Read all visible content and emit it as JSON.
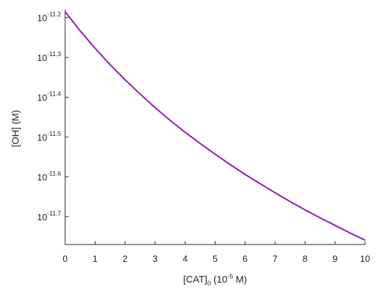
{
  "chart_data": {
    "type": "line",
    "title": "",
    "xlabel": "[CAT]0 (10-5 M)",
    "xlabel_parts": {
      "main": "[CAT]",
      "sub": "0",
      "pre_sup": " (10",
      "sup": "-5",
      "post_sup": " M)"
    },
    "ylabel": "[OH] (M)",
    "xlim": [
      0,
      10
    ],
    "ylim": [
      -11.77,
      -11.18
    ],
    "x_ticks": [
      0,
      1,
      2,
      3,
      4,
      5,
      6,
      7,
      8,
      9,
      10
    ],
    "y_ticks": [
      {
        "value": -11.2,
        "base": "10",
        "exponent": "-11.2"
      },
      {
        "value": -11.3,
        "base": "10",
        "exponent": "-11.3"
      },
      {
        "value": -11.4,
        "base": "10",
        "exponent": "-11.4"
      },
      {
        "value": -11.5,
        "base": "10",
        "exponent": "-11.5"
      },
      {
        "value": -11.6,
        "base": "10",
        "exponent": "-11.6"
      },
      {
        "value": -11.7,
        "base": "10",
        "exponent": "-11.7"
      }
    ],
    "y_scale": "log",
    "grid": false,
    "series": [
      {
        "color": "#8e16b4",
        "x": [
          0,
          0.5,
          1,
          1.5,
          2,
          2.5,
          3,
          3.5,
          4,
          4.5,
          5,
          5.5,
          6,
          6.5,
          7,
          7.5,
          8,
          8.5,
          9,
          9.5,
          10
        ],
        "y": [
          -11.185,
          -11.233,
          -11.277,
          -11.318,
          -11.356,
          -11.392,
          -11.426,
          -11.458,
          -11.488,
          -11.516,
          -11.543,
          -11.569,
          -11.594,
          -11.617,
          -11.64,
          -11.662,
          -11.683,
          -11.703,
          -11.722,
          -11.741,
          -11.759
        ]
      }
    ]
  }
}
